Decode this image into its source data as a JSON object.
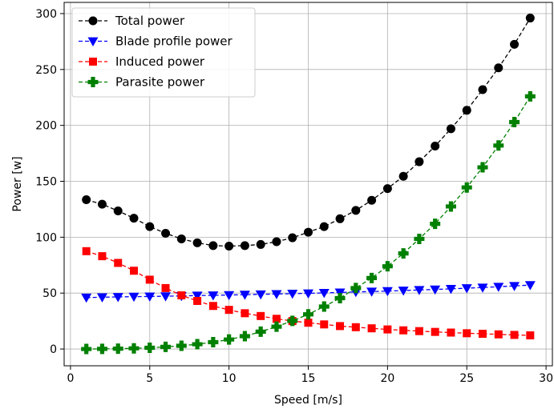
{
  "chart_data": {
    "type": "line",
    "title": "",
    "xlabel": "Speed [m/s]",
    "ylabel": "Power [w]",
    "xlim": [
      -0.4,
      30.4
    ],
    "ylim": [
      -15,
      310
    ],
    "xticks": [
      0,
      5,
      10,
      15,
      20,
      25,
      30
    ],
    "yticks": [
      0,
      50,
      100,
      150,
      200,
      250,
      300
    ],
    "grid": true,
    "legend_position": "upper-left",
    "x": [
      1,
      2,
      3,
      4,
      5,
      6,
      7,
      8,
      9,
      10,
      11,
      12,
      13,
      14,
      15,
      16,
      17,
      18,
      19,
      20,
      21,
      22,
      23,
      24,
      25,
      26,
      27,
      28,
      29
    ],
    "series": [
      {
        "name": "Total power",
        "color": "#000000",
        "marker": "circle",
        "values": [
          133.5,
          129.5,
          123.5,
          117,
          109.5,
          103.5,
          98.5,
          95,
          92.5,
          92,
          92.5,
          93.5,
          96,
          99.5,
          104.5,
          109.5,
          116.5,
          124,
          133,
          143.5,
          154.5,
          167.5,
          181.5,
          197,
          213.5,
          232,
          251.5,
          272.5,
          296
        ]
      },
      {
        "name": "Blade profile power",
        "color": "#0000ff",
        "marker": "triangle-down",
        "values": [
          46,
          46.3,
          46.6,
          46.8,
          47,
          47.2,
          47.5,
          47.8,
          48,
          48.3,
          48.6,
          48.9,
          49.2,
          49.5,
          49.8,
          50.2,
          50.6,
          51,
          51.4,
          51.8,
          52.3,
          52.8,
          53.3,
          53.8,
          54.4,
          55,
          55.7,
          56.4,
          57.2
        ]
      },
      {
        "name": "Induced power",
        "color": "#ff0000",
        "marker": "square",
        "values": [
          87.5,
          83,
          77,
          70,
          62,
          54.5,
          48,
          43,
          38.5,
          35,
          32,
          29.5,
          27,
          25,
          23.5,
          22,
          20.5,
          19.5,
          18.5,
          17.5,
          16.7,
          16,
          15.3,
          14.7,
          14.1,
          13.6,
          13.1,
          12.6,
          12.2
        ]
      },
      {
        "name": "Parasite power",
        "color": "#008000",
        "marker": "plus",
        "values": [
          0,
          0.1,
          0.3,
          0.6,
          1.1,
          1.9,
          2.9,
          4.3,
          6.1,
          8.5,
          11.5,
          15.5,
          20,
          25.2,
          31,
          38,
          45.5,
          54.5,
          63.5,
          74,
          85.5,
          98.5,
          112,
          127.5,
          144.5,
          162.5,
          182,
          203,
          226
        ]
      }
    ]
  }
}
